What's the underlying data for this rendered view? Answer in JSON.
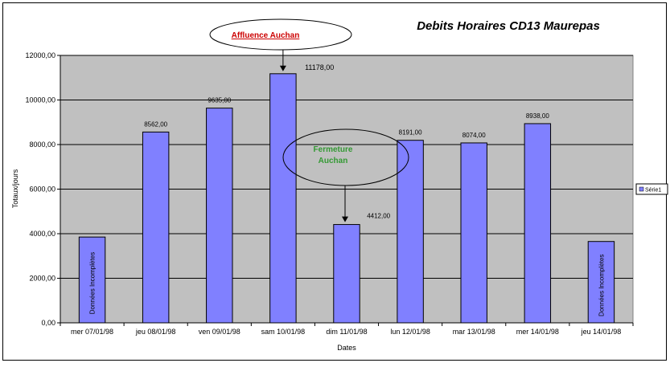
{
  "chart_data": {
    "type": "bar",
    "title": "Debits Horaires CD13 Maurepas",
    "xlabel": "Dates",
    "ylabel": "Totaux/jours",
    "ylim": [
      0,
      12000
    ],
    "yticks": [
      "0,00",
      "2000,00",
      "4000,00",
      "6000,00",
      "8000,00",
      "10000,00",
      "12000,00"
    ],
    "grid": true,
    "legend_position": "right",
    "categories": [
      "mer 07/01/98",
      "jeu 08/01/98",
      "ven 09/01/98",
      "sam 10/01/98",
      "dim 11/01/98",
      "lun 12/01/98",
      "mar 13/01/98",
      "mer 14/01/98",
      "jeu 14/01/98"
    ],
    "series": [
      {
        "name": "Série1",
        "values": [
          3850,
          8562,
          9635,
          11178,
          4412,
          8191,
          8074,
          8938,
          3650
        ]
      }
    ],
    "data_labels": [
      "",
      "8562,00",
      "9635,00",
      "11178,00",
      "4412,00",
      "8191,00",
      "8074,00",
      "8938,00",
      ""
    ],
    "bar_notes": [
      "Données Incomplètes",
      "",
      "",
      "",
      "",
      "",
      "",
      "",
      "Données Incomplètes"
    ],
    "annotations": [
      {
        "text": "Affluence Auchan",
        "color": "#cc0000",
        "target_index": 3
      },
      {
        "text": "Fermeture Auchan",
        "color": "#339933",
        "target_index": 4
      }
    ],
    "colors": {
      "bar": "#8080ff",
      "plot_bg": "#c0c0c0",
      "grid": "#000000"
    }
  }
}
